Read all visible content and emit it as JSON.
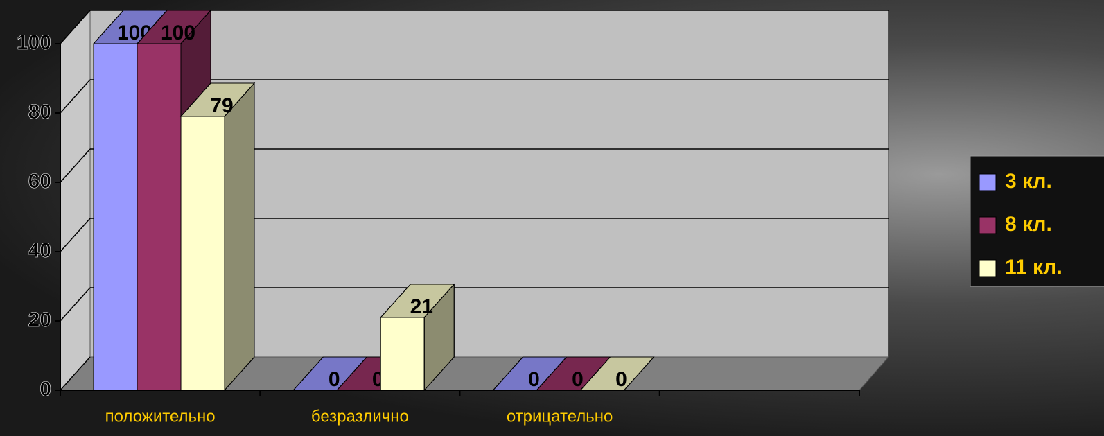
{
  "chart_data": {
    "type": "bar3d",
    "categories": [
      "положительно",
      "безразлично",
      "отрицательно",
      null
    ],
    "series": [
      {
        "name": "3 кл.",
        "color": "#9999ff",
        "values": [
          100,
          0,
          0,
          null
        ]
      },
      {
        "name": "8 кл.",
        "color": "#993366",
        "values": [
          100,
          0,
          0,
          null
        ]
      },
      {
        "name": "11 кл.",
        "color": "#ffffcc",
        "values": [
          79,
          21,
          0,
          null
        ]
      }
    ],
    "ylim": [
      0,
      100
    ],
    "yticks": [
      0,
      20,
      40,
      60,
      80,
      100
    ],
    "grid": true,
    "legend": "right"
  }
}
